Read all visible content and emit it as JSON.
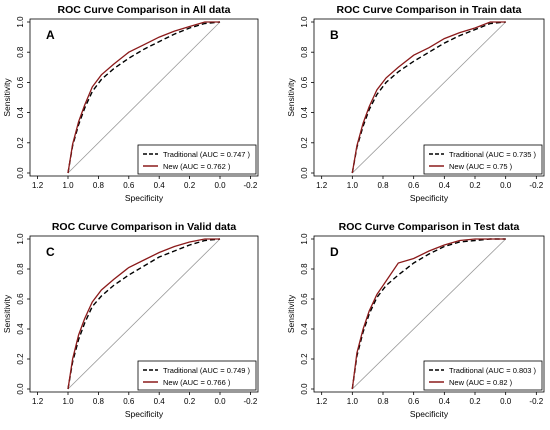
{
  "chart_data": [
    {
      "type": "line",
      "panel_letter": "A",
      "title": "ROC Curve Comparison in All data",
      "xlabel": "Specificity",
      "ylabel": "Sensitivity",
      "xlim": [
        1.25,
        -0.25
      ],
      "ylim": [
        0,
        1.0
      ],
      "x_reversed": true,
      "x_ticks": [
        1.2,
        1.0,
        0.8,
        0.6,
        0.4,
        0.2,
        0.0,
        -0.2
      ],
      "x_tick_labels": [
        "1.2",
        "1.0",
        "0.8",
        "0.6",
        "0.4",
        "0.2",
        "0.0",
        "-0.2"
      ],
      "y_ticks": [
        0.0,
        0.2,
        0.4,
        0.6,
        0.8,
        1.0
      ],
      "y_tick_labels": [
        "0.0",
        "0.2",
        "0.4",
        "0.6",
        "0.8",
        "1.0"
      ],
      "diagonal": true,
      "legend_position": "bottom-right",
      "series": [
        {
          "name": "Traditional (AUC = 0.747 )",
          "style": "dashed",
          "color": "#000000",
          "x": [
            1.0,
            0.97,
            0.93,
            0.89,
            0.84,
            0.78,
            0.7,
            0.6,
            0.5,
            0.4,
            0.3,
            0.2,
            0.1,
            0.0
          ],
          "y": [
            0.0,
            0.18,
            0.32,
            0.43,
            0.54,
            0.62,
            0.69,
            0.76,
            0.82,
            0.87,
            0.92,
            0.96,
            0.99,
            1.0
          ]
        },
        {
          "name": "New (AUC = 0.762 )",
          "style": "solid",
          "color": "#8B1A1A",
          "x": [
            1.0,
            0.97,
            0.93,
            0.89,
            0.84,
            0.78,
            0.7,
            0.6,
            0.5,
            0.4,
            0.3,
            0.2,
            0.1,
            0.0
          ],
          "y": [
            0.0,
            0.19,
            0.34,
            0.45,
            0.57,
            0.65,
            0.72,
            0.8,
            0.85,
            0.9,
            0.94,
            0.97,
            1.0,
            1.0
          ]
        }
      ]
    },
    {
      "type": "line",
      "panel_letter": "B",
      "title": "ROC Curve Comparison in Train data",
      "xlabel": "Specificity",
      "ylabel": "Sensitivity",
      "xlim": [
        1.25,
        -0.25
      ],
      "ylim": [
        0,
        1.0
      ],
      "x_reversed": true,
      "x_ticks": [
        1.2,
        1.0,
        0.8,
        0.6,
        0.4,
        0.2,
        0.0,
        -0.2
      ],
      "x_tick_labels": [
        "1.2",
        "1.0",
        "0.8",
        "0.6",
        "0.4",
        "0.2",
        "0.0",
        "-0.2"
      ],
      "y_ticks": [
        0.0,
        0.2,
        0.4,
        0.6,
        0.8,
        1.0
      ],
      "y_tick_labels": [
        "0.0",
        "0.2",
        "0.4",
        "0.6",
        "0.8",
        "1.0"
      ],
      "diagonal": true,
      "legend_position": "bottom-right",
      "series": [
        {
          "name": "Traditional (AUC = 0.735 )",
          "style": "dashed",
          "color": "#000000",
          "x": [
            1.0,
            0.97,
            0.93,
            0.89,
            0.84,
            0.78,
            0.7,
            0.6,
            0.5,
            0.4,
            0.3,
            0.2,
            0.1,
            0.0
          ],
          "y": [
            0.0,
            0.17,
            0.31,
            0.42,
            0.52,
            0.6,
            0.67,
            0.74,
            0.8,
            0.86,
            0.91,
            0.95,
            0.99,
            1.0
          ]
        },
        {
          "name": "New (AUC = 0.75 )",
          "style": "solid",
          "color": "#8B1A1A",
          "x": [
            1.0,
            0.97,
            0.93,
            0.89,
            0.84,
            0.78,
            0.7,
            0.6,
            0.5,
            0.4,
            0.3,
            0.2,
            0.1,
            0.0
          ],
          "y": [
            0.0,
            0.18,
            0.33,
            0.44,
            0.55,
            0.63,
            0.7,
            0.78,
            0.83,
            0.89,
            0.93,
            0.96,
            1.0,
            1.0
          ]
        }
      ]
    },
    {
      "type": "line",
      "panel_letter": "C",
      "title": "ROC Curve Comparison in Valid data",
      "xlabel": "Specificity",
      "ylabel": "Sensitivity",
      "xlim": [
        1.25,
        -0.25
      ],
      "ylim": [
        0,
        1.0
      ],
      "x_reversed": true,
      "x_ticks": [
        1.2,
        1.0,
        0.8,
        0.6,
        0.4,
        0.2,
        0.0,
        -0.2
      ],
      "x_tick_labels": [
        "1.2",
        "1.0",
        "0.8",
        "0.6",
        "0.4",
        "0.2",
        "0.0",
        "-0.2"
      ],
      "y_ticks": [
        0.0,
        0.2,
        0.4,
        0.6,
        0.8,
        1.0
      ],
      "y_tick_labels": [
        "0.0",
        "0.2",
        "0.4",
        "0.6",
        "0.8",
        "1.0"
      ],
      "diagonal": true,
      "legend_position": "bottom-right",
      "series": [
        {
          "name": "Traditional (AUC = 0.749 )",
          "style": "dashed",
          "color": "#000000",
          "x": [
            1.0,
            0.97,
            0.93,
            0.89,
            0.84,
            0.78,
            0.7,
            0.6,
            0.5,
            0.4,
            0.3,
            0.2,
            0.1,
            0.0
          ],
          "y": [
            0.0,
            0.18,
            0.33,
            0.44,
            0.55,
            0.62,
            0.69,
            0.76,
            0.82,
            0.88,
            0.92,
            0.96,
            0.99,
            1.0
          ]
        },
        {
          "name": "New (AUC = 0.766 )",
          "style": "solid",
          "color": "#8B1A1A",
          "x": [
            1.0,
            0.97,
            0.93,
            0.89,
            0.84,
            0.78,
            0.7,
            0.6,
            0.5,
            0.4,
            0.3,
            0.2,
            0.1,
            0.0
          ],
          "y": [
            0.0,
            0.2,
            0.36,
            0.47,
            0.58,
            0.66,
            0.73,
            0.81,
            0.86,
            0.91,
            0.95,
            0.98,
            1.0,
            1.0
          ]
        }
      ]
    },
    {
      "type": "line",
      "panel_letter": "D",
      "title": "ROC Curve Comparison in Test data",
      "xlabel": "Specificity",
      "ylabel": "Sensitivity",
      "xlim": [
        1.25,
        -0.25
      ],
      "ylim": [
        0,
        1.0
      ],
      "x_reversed": true,
      "x_ticks": [
        1.2,
        1.0,
        0.8,
        0.6,
        0.4,
        0.2,
        0.0,
        -0.2
      ],
      "x_tick_labels": [
        "1.2",
        "1.0",
        "0.8",
        "0.6",
        "0.4",
        "0.2",
        "0.0",
        "-0.2"
      ],
      "y_ticks": [
        0.0,
        0.2,
        0.4,
        0.6,
        0.8,
        1.0
      ],
      "y_tick_labels": [
        "0.0",
        "0.2",
        "0.4",
        "0.6",
        "0.8",
        "1.0"
      ],
      "diagonal": true,
      "legend_position": "bottom-right",
      "series": [
        {
          "name": "Traditional (AUC = 0.803 )",
          "style": "dashed",
          "color": "#000000",
          "x": [
            1.0,
            0.97,
            0.93,
            0.89,
            0.84,
            0.78,
            0.7,
            0.6,
            0.5,
            0.4,
            0.3,
            0.2,
            0.1,
            0.0
          ],
          "y": [
            0.0,
            0.22,
            0.38,
            0.5,
            0.61,
            0.69,
            0.76,
            0.84,
            0.9,
            0.95,
            0.98,
            0.99,
            1.0,
            1.0
          ]
        },
        {
          "name": "New (AUC = 0.82 )",
          "style": "solid",
          "color": "#8B1A1A",
          "x": [
            1.0,
            0.97,
            0.93,
            0.89,
            0.84,
            0.78,
            0.7,
            0.6,
            0.5,
            0.4,
            0.3,
            0.2,
            0.1,
            0.0
          ],
          "y": [
            0.0,
            0.24,
            0.4,
            0.52,
            0.63,
            0.72,
            0.84,
            0.87,
            0.92,
            0.96,
            0.99,
            1.0,
            1.0,
            1.0
          ]
        }
      ]
    }
  ]
}
